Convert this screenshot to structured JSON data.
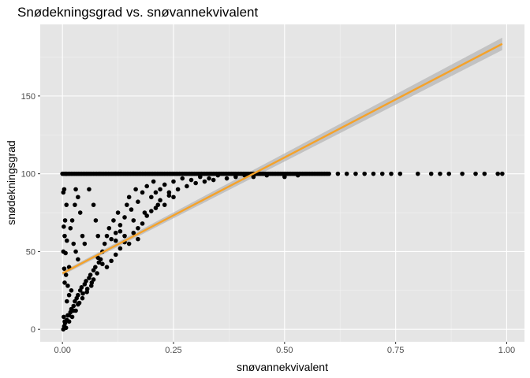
{
  "chart_data": {
    "type": "scatter",
    "title": "Snødekningsgrad vs. snøvannekvivalent",
    "xlabel": "snøvannekvivalent",
    "ylabel": "snødekningsgrad",
    "xlim": [
      -0.05,
      1.04
    ],
    "ylim": [
      -8,
      196
    ],
    "x_ticks": [
      0.0,
      0.25,
      0.5,
      0.75,
      1.0
    ],
    "x_tick_labels": [
      "0.00",
      "0.25",
      "0.50",
      "0.75",
      "1.00"
    ],
    "y_ticks": [
      0,
      50,
      100,
      150
    ],
    "y_tick_labels": [
      "0",
      "50",
      "100",
      "150"
    ],
    "grid": true,
    "background": "#e5e5e5",
    "point_color": "#000000",
    "fit": {
      "method": "linear",
      "intercept": 36,
      "slope": 149,
      "x_range": [
        0.0,
        0.99
      ],
      "line_color": "#f5a229",
      "ribbon_color": "#b3b3b3",
      "ribbon_halfwidth_at_start": 1.2,
      "ribbon_halfwidth_at_end": 4
    },
    "points": [
      [
        0.002,
        0
      ],
      [
        0.004,
        2
      ],
      [
        0.006,
        4
      ],
      [
        0.008,
        1
      ],
      [
        0.01,
        6
      ],
      [
        0.003,
        8
      ],
      [
        0.012,
        9
      ],
      [
        0.015,
        5
      ],
      [
        0.018,
        11
      ],
      [
        0.02,
        13
      ],
      [
        0.022,
        8
      ],
      [
        0.025,
        15
      ],
      [
        0.028,
        18
      ],
      [
        0.03,
        12
      ],
      [
        0.032,
        20
      ],
      [
        0.035,
        22
      ],
      [
        0.038,
        17
      ],
      [
        0.04,
        25
      ],
      [
        0.043,
        27
      ],
      [
        0.046,
        23
      ],
      [
        0.05,
        29
      ],
      [
        0.053,
        31
      ],
      [
        0.056,
        26
      ],
      [
        0.06,
        33
      ],
      [
        0.063,
        35
      ],
      [
        0.066,
        30
      ],
      [
        0.07,
        38
      ],
      [
        0.074,
        40
      ],
      [
        0.078,
        36
      ],
      [
        0.082,
        43
      ],
      [
        0.086,
        45
      ],
      [
        0.01,
        18
      ],
      [
        0.015,
        22
      ],
      [
        0.02,
        25
      ],
      [
        0.012,
        28
      ],
      [
        0.005,
        30
      ],
      [
        0.008,
        35
      ],
      [
        0.004,
        39
      ],
      [
        0.007,
        49
      ],
      [
        0.002,
        50
      ],
      [
        0.01,
        57
      ],
      [
        0.005,
        60
      ],
      [
        0.003,
        66
      ],
      [
        0.006,
        70
      ],
      [
        0.009,
        80
      ],
      [
        0.002,
        88
      ],
      [
        0.004,
        90
      ],
      [
        0.008,
        100
      ],
      [
        0.03,
        90
      ],
      [
        0.035,
        85
      ],
      [
        0.028,
        80
      ],
      [
        0.04,
        75
      ],
      [
        0.022,
        70
      ],
      [
        0.018,
        65
      ],
      [
        0.025,
        55
      ],
      [
        0.03,
        50
      ],
      [
        0.035,
        45
      ],
      [
        0.015,
        40
      ],
      [
        0.045,
        60
      ],
      [
        0.05,
        55
      ],
      [
        0.06,
        90
      ],
      [
        0.07,
        80
      ],
      [
        0.075,
        70
      ],
      [
        0.08,
        60
      ],
      [
        0.09,
        50
      ],
      [
        0.095,
        55
      ],
      [
        0.1,
        60
      ],
      [
        0.105,
        65
      ],
      [
        0.11,
        58
      ],
      [
        0.115,
        70
      ],
      [
        0.12,
        62
      ],
      [
        0.125,
        75
      ],
      [
        0.13,
        67
      ],
      [
        0.14,
        72
      ],
      [
        0.145,
        80
      ],
      [
        0.15,
        85
      ],
      [
        0.155,
        77
      ],
      [
        0.16,
        70
      ],
      [
        0.165,
        90
      ],
      [
        0.17,
        82
      ],
      [
        0.18,
        88
      ],
      [
        0.185,
        75
      ],
      [
        0.19,
        92
      ],
      [
        0.2,
        85
      ],
      [
        0.205,
        95
      ],
      [
        0.21,
        88
      ],
      [
        0.215,
        80
      ],
      [
        0.22,
        90
      ],
      [
        0.23,
        93
      ],
      [
        0.24,
        86
      ],
      [
        0.25,
        95
      ],
      [
        0.26,
        90
      ],
      [
        0.27,
        97
      ],
      [
        0.28,
        92
      ],
      [
        0.29,
        96
      ],
      [
        0.3,
        94
      ],
      [
        0.31,
        98
      ],
      [
        0.32,
        95
      ],
      [
        0.33,
        97
      ],
      [
        0.34,
        96
      ],
      [
        0.35,
        99
      ],
      [
        0.37,
        97
      ],
      [
        0.39,
        98
      ],
      [
        0.41,
        99
      ],
      [
        0.43,
        98
      ],
      [
        0.46,
        99
      ],
      [
        0.5,
        98
      ],
      [
        0.53,
        99
      ],
      [
        0.12,
        48
      ],
      [
        0.13,
        52
      ],
      [
        0.14,
        56
      ],
      [
        0.11,
        44
      ],
      [
        0.1,
        40
      ],
      [
        0.09,
        42
      ],
      [
        0.08,
        46
      ],
      [
        0.16,
        62
      ],
      [
        0.17,
        65
      ],
      [
        0.18,
        68
      ],
      [
        0.19,
        73
      ],
      [
        0.2,
        76
      ],
      [
        0.15,
        55
      ],
      [
        0.14,
        60
      ],
      [
        0.13,
        63
      ],
      [
        0.12,
        57
      ],
      [
        0.17,
        58
      ],
      [
        0.21,
        78
      ],
      [
        0.22,
        83
      ],
      [
        0.23,
        80
      ],
      [
        0.24,
        88
      ],
      [
        0.25,
        85
      ],
      [
        0.07,
        32
      ],
      [
        0.065,
        28
      ],
      [
        0.055,
        24
      ],
      [
        0.045,
        20
      ],
      [
        0.035,
        16
      ],
      [
        0.025,
        12
      ],
      [
        0.015,
        9
      ],
      [
        0.005,
        5
      ]
    ],
    "top_band_xs": [
      0.0,
      0.02,
      0.04,
      0.06,
      0.08,
      0.1,
      0.12,
      0.14,
      0.16,
      0.18,
      0.2,
      0.22,
      0.24,
      0.26,
      0.28,
      0.3,
      0.32,
      0.34,
      0.36,
      0.38,
      0.4,
      0.42,
      0.44,
      0.46,
      0.48,
      0.5,
      0.52,
      0.54,
      0.56,
      0.58,
      0.6,
      0.62,
      0.64,
      0.66,
      0.68,
      0.7,
      0.72,
      0.74,
      0.76,
      0.8,
      0.83,
      0.85,
      0.87,
      0.9,
      0.93,
      0.95,
      0.98,
      0.99
    ]
  }
}
